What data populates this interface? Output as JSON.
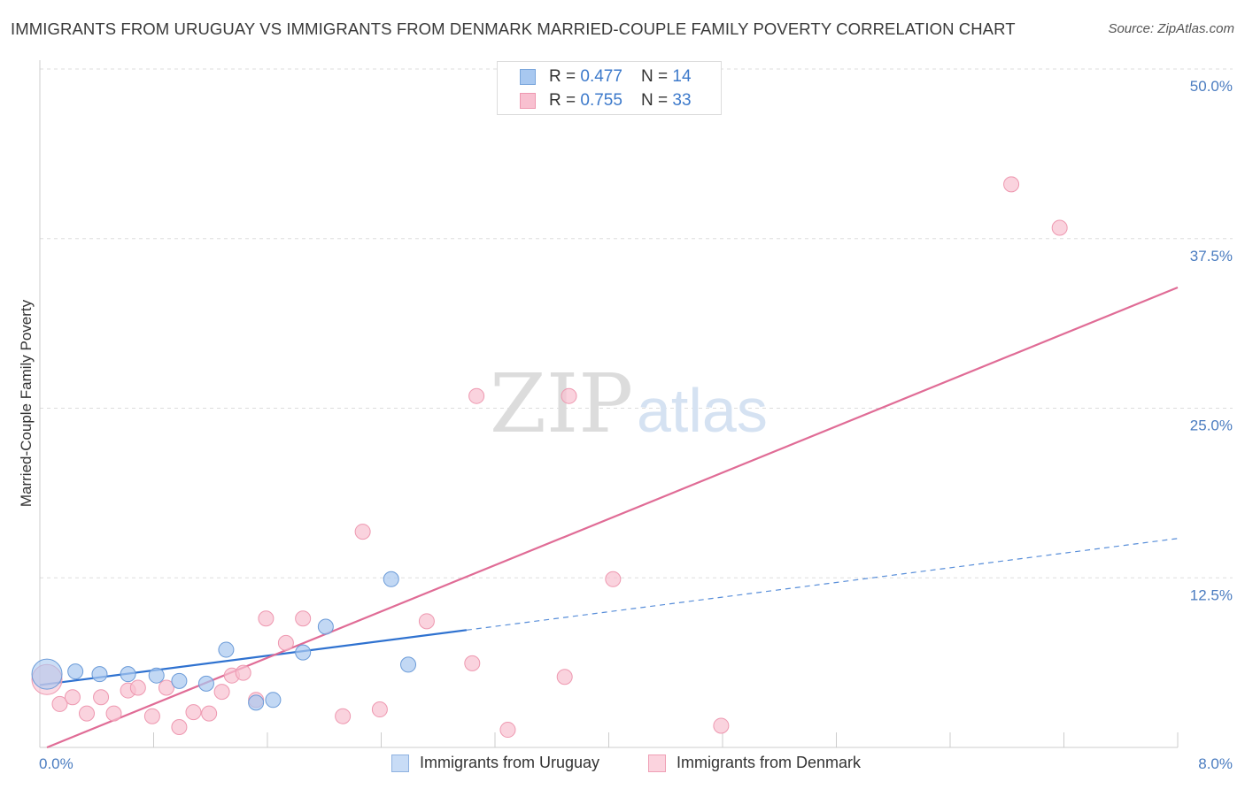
{
  "title": "IMMIGRANTS FROM URUGUAY VS IMMIGRANTS FROM DENMARK MARRIED-COUPLE FAMILY POVERTY CORRELATION CHART",
  "source": "Source: ZipAtlas.com",
  "watermark": {
    "zip": "ZIP",
    "atlas": "atlas"
  },
  "legend_top": {
    "rows": [
      {
        "r_label": "R = ",
        "r_value": "0.477",
        "n_label": "N = ",
        "n_value": "14",
        "color": "#a8c8f0",
        "border": "#7aa6dc"
      },
      {
        "r_label": "R = ",
        "r_value": "0.755",
        "n_label": "N = ",
        "n_value": "33",
        "color": "#f8c0d0",
        "border": "#ee98b0"
      }
    ]
  },
  "legend_bottom": [
    {
      "label": "Immigrants from Uruguay",
      "color": "#c8dcf6",
      "border": "#8fb2e0"
    },
    {
      "label": "Immigrants from Denmark",
      "color": "#fbd3de",
      "border": "#ef9fb5"
    }
  ],
  "chart_data": {
    "type": "scatter",
    "title": "IMMIGRANTS FROM URUGUAY VS IMMIGRANTS FROM DENMARK MARRIED-COUPLE FAMILY POVERTY CORRELATION CHART",
    "xlabel": "",
    "ylabel": "Married-Couple Family Poverty",
    "xlim": [
      0,
      8
    ],
    "ylim": [
      0,
      50
    ],
    "x_tick_labels": [
      "0.0%",
      "8.0%"
    ],
    "y_ticks": [
      12.5,
      25.0,
      37.5,
      50.0
    ],
    "y_tick_labels": [
      "12.5%",
      "25.0%",
      "37.5%",
      "50.0%"
    ],
    "grid": true,
    "series": [
      {
        "name": "Immigrants from Uruguay",
        "color": "#a8c8f0",
        "stroke": "#6b9bd8",
        "line_color": "#2f72d0",
        "trend": {
          "x0": 0.0,
          "y0": 4.6,
          "x_solid_end": 3.0,
          "x1": 8.0,
          "y1": 15.4
        },
        "points": [
          {
            "x": 0.05,
            "y": 5.4,
            "big": true
          },
          {
            "x": 0.25,
            "y": 5.6
          },
          {
            "x": 0.42,
            "y": 5.4
          },
          {
            "x": 0.62,
            "y": 5.4
          },
          {
            "x": 0.82,
            "y": 5.3
          },
          {
            "x": 0.98,
            "y": 4.9
          },
          {
            "x": 1.17,
            "y": 4.7
          },
          {
            "x": 1.31,
            "y": 7.2
          },
          {
            "x": 1.52,
            "y": 3.3
          },
          {
            "x": 1.64,
            "y": 3.5
          },
          {
            "x": 1.85,
            "y": 7.0
          },
          {
            "x": 2.01,
            "y": 8.9
          },
          {
            "x": 2.47,
            "y": 12.4
          },
          {
            "x": 2.59,
            "y": 6.1
          }
        ]
      },
      {
        "name": "Immigrants from Denmark",
        "color": "#f8c0d0",
        "stroke": "#ee98b0",
        "line_color": "#e06c96",
        "trend": {
          "x0": 0.05,
          "y0": 0.0,
          "x1": 8.0,
          "y1": 33.9
        },
        "points": [
          {
            "x": 0.05,
            "y": 5.0,
            "big": true
          },
          {
            "x": 0.14,
            "y": 3.2
          },
          {
            "x": 0.23,
            "y": 3.7
          },
          {
            "x": 0.33,
            "y": 2.5
          },
          {
            "x": 0.43,
            "y": 3.7
          },
          {
            "x": 0.52,
            "y": 2.5
          },
          {
            "x": 0.62,
            "y": 4.2
          },
          {
            "x": 0.69,
            "y": 4.4
          },
          {
            "x": 0.79,
            "y": 2.3
          },
          {
            "x": 0.89,
            "y": 4.4
          },
          {
            "x": 0.98,
            "y": 1.5
          },
          {
            "x": 1.08,
            "y": 2.6
          },
          {
            "x": 1.19,
            "y": 2.5
          },
          {
            "x": 1.28,
            "y": 4.1
          },
          {
            "x": 1.35,
            "y": 5.3
          },
          {
            "x": 1.43,
            "y": 5.5
          },
          {
            "x": 1.52,
            "y": 3.5
          },
          {
            "x": 1.59,
            "y": 9.5
          },
          {
            "x": 1.73,
            "y": 7.7
          },
          {
            "x": 1.85,
            "y": 9.5
          },
          {
            "x": 2.13,
            "y": 2.3
          },
          {
            "x": 2.27,
            "y": 15.9
          },
          {
            "x": 2.39,
            "y": 2.8
          },
          {
            "x": 2.72,
            "y": 9.3
          },
          {
            "x": 3.04,
            "y": 6.2
          },
          {
            "x": 3.07,
            "y": 25.9
          },
          {
            "x": 3.29,
            "y": 1.3
          },
          {
            "x": 3.69,
            "y": 5.2
          },
          {
            "x": 3.72,
            "y": 25.9
          },
          {
            "x": 4.03,
            "y": 12.4
          },
          {
            "x": 4.79,
            "y": 1.6
          },
          {
            "x": 6.83,
            "y": 41.5
          },
          {
            "x": 7.17,
            "y": 38.3
          }
        ]
      }
    ]
  }
}
